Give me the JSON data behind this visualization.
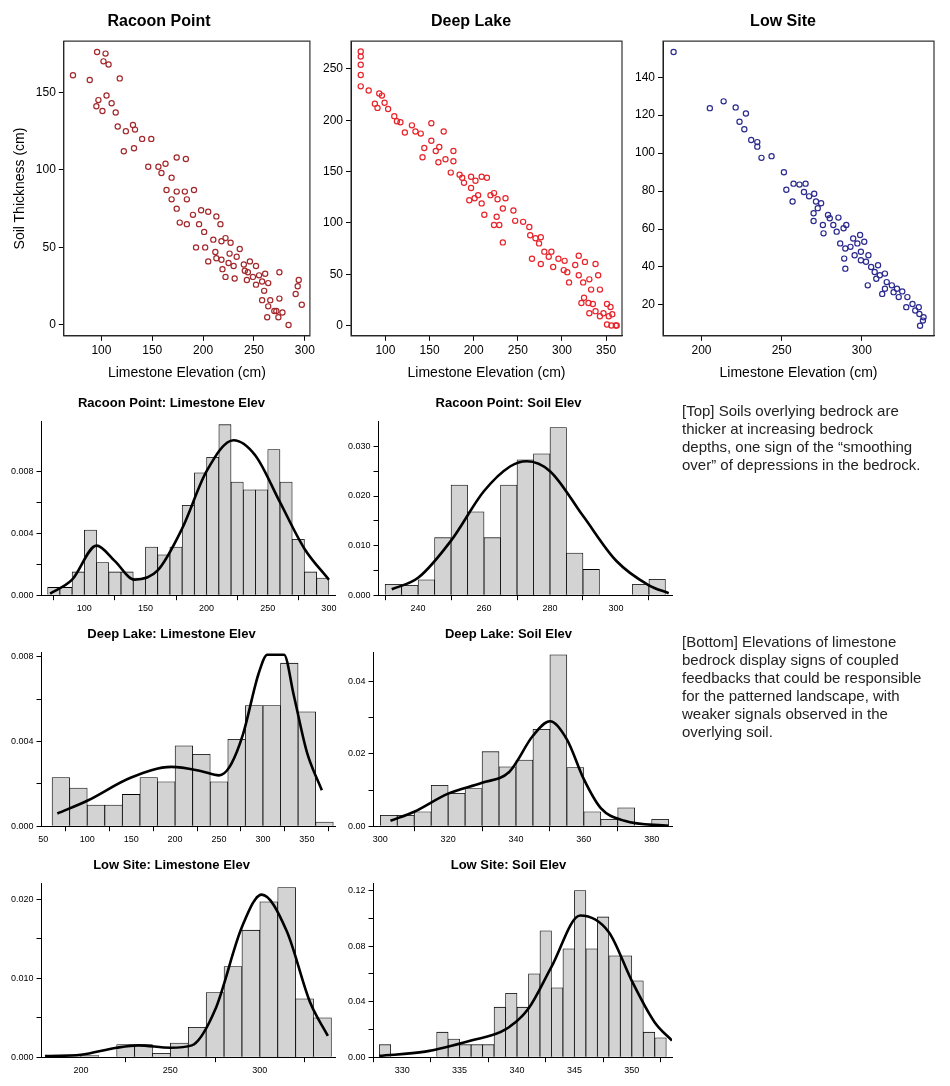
{
  "chart_data": [
    {
      "type": "scatter",
      "title": "Racoon Point",
      "xlabel": "Limestone Elevation (cm)",
      "ylabel": "Soil Thickness (cm)",
      "color": "#a3282b",
      "marker": "circle",
      "xlim": [
        63,
        305
      ],
      "xticks": [
        100,
        150,
        200,
        250,
        300
      ],
      "ylim": [
        -7,
        183
      ],
      "yticks": [
        0,
        50,
        100,
        150
      ],
      "x": [
        72,
        88.5,
        95.7,
        104,
        102,
        107,
        118,
        95,
        97,
        101,
        105,
        110,
        114,
        116,
        124,
        131,
        133,
        122,
        132,
        140,
        149,
        146,
        156,
        163,
        159,
        174,
        183,
        169,
        164,
        169,
        174,
        182,
        191,
        184,
        174,
        177,
        184,
        190,
        198,
        205,
        213,
        217,
        196,
        201,
        193,
        202,
        210,
        218,
        222,
        227,
        226,
        205,
        213,
        218,
        225,
        233,
        236,
        212,
        219,
        222,
        231,
        230,
        240,
        241,
        246,
        244,
        252,
        243,
        249,
        255,
        261,
        252,
        258,
        264,
        260,
        258,
        266,
        264,
        270,
        263,
        274,
        275,
        275,
        272,
        278,
        284,
        294,
        293,
        291,
        297
      ],
      "values": [
        161,
        158,
        176,
        175,
        170,
        168,
        159,
        141,
        145,
        138,
        148,
        143,
        137,
        128,
        125,
        129,
        126,
        112,
        114,
        120,
        120,
        102,
        102,
        104,
        98,
        108,
        107,
        95,
        87,
        81,
        86,
        86,
        87,
        81,
        75,
        66,
        65,
        71,
        74,
        73,
        70,
        65,
        65,
        60,
        50,
        50,
        55,
        54,
        56,
        53,
        46,
        41,
        43,
        42,
        40,
        44,
        49,
        47,
        36,
        31,
        30,
        38,
        39,
        35,
        41,
        34,
        38,
        29,
        31,
        32,
        33,
        26,
        28,
        27,
        22,
        16,
        16,
        12,
        9,
        5,
        5,
        17,
        34,
        9,
        8,
        0,
        29,
        25,
        20,
        13
      ]
    },
    {
      "type": "scatter",
      "title": "Deep Lake",
      "xlabel": "Limestone Elevation (cm)",
      "color": "#e8242a",
      "marker": "circle",
      "xlim": [
        61,
        368
      ],
      "xticks": [
        100,
        150,
        200,
        250,
        300,
        350
      ],
      "ylim": [
        -10,
        277
      ],
      "yticks": [
        0,
        50,
        100,
        150,
        200,
        250
      ],
      "x": [
        72,
        72,
        72,
        72,
        72,
        81,
        93,
        96,
        88,
        91,
        99,
        103,
        110,
        113,
        117,
        122,
        130,
        134,
        140,
        152,
        152,
        144,
        142,
        157,
        161,
        160,
        166,
        168,
        177,
        177,
        174,
        184,
        187,
        189,
        197,
        197,
        202,
        195,
        201,
        205,
        209,
        212,
        209,
        215,
        219,
        223,
        227,
        226,
        223,
        229,
        233,
        236,
        233,
        245,
        247,
        256,
        263,
        264,
        270,
        276,
        274,
        266,
        280,
        276,
        285,
        288,
        290,
        296,
        303,
        302,
        306,
        308,
        315,
        319,
        319,
        326,
        324,
        331,
        333,
        338,
        341,
        343,
        325,
        330,
        322,
        331,
        335,
        338,
        343,
        347,
        351,
        353,
        351,
        361,
        357,
        356,
        362,
        355
      ],
      "values": [
        267,
        262,
        254,
        244,
        233,
        229,
        226,
        224,
        216,
        212,
        217,
        211,
        204,
        199,
        198,
        188,
        195,
        189,
        187,
        197,
        180,
        173,
        164,
        170,
        174,
        159,
        189,
        162,
        170,
        160,
        149,
        147,
        144,
        139,
        145,
        134,
        141,
        122,
        124,
        127,
        119,
        108,
        145,
        144,
        127,
        129,
        123,
        106,
        98,
        98,
        114,
        124,
        81,
        112,
        102,
        101,
        96,
        88,
        85,
        86,
        80,
        65,
        72,
        60,
        67,
        72,
        57,
        65,
        63,
        54,
        52,
        42,
        59,
        49,
        68,
        62,
        42,
        45,
        35,
        60,
        49,
        35,
        27,
        22,
        22,
        12,
        21,
        14,
        9,
        12,
        21,
        9,
        1,
        0,
        11,
        0,
        0,
        18
      ]
    },
    {
      "type": "scatter",
      "title": "Low Site",
      "xlabel": "Limestone Elevation (cm)",
      "color": "#2b2a8f",
      "marker": "circle",
      "xlim": [
        176,
        345
      ],
      "xticks": [
        200,
        250,
        300
      ],
      "ylim": [
        3.7,
        159
      ],
      "yticks": [
        20,
        40,
        60,
        80,
        100,
        120,
        140
      ],
      "x": [
        182.6,
        205.2,
        213.8,
        221.3,
        227.7,
        223.7,
        226.7,
        231,
        234.8,
        234.8,
        237.4,
        243.7,
        251.4,
        252.9,
        256.8,
        257.4,
        261.1,
        264.9,
        263.9,
        270.3,
        267.1,
        271.4,
        274.6,
        269.9,
        269.9,
        272.5,
        275.7,
        276.1,
        280,
        278.9,
        282.2,
        285.4,
        284.3,
        288.6,
        290.3,
        286.5,
        289.7,
        289,
        289.7,
        292.9,
        294.6,
        297.2,
        299.4,
        298.9,
        301.5,
        295.5,
        299.4,
        302.6,
        304.1,
        303.7,
        305.8,
        308,
        310.1,
        311.2,
        309,
        314.4,
        315.5,
        314.4,
        312.7,
        318.7,
        319.8,
        321.9,
        323,
        325.2,
        328.4,
        327.7,
        331.6,
        333.3,
        335.5,
        335.9,
        338.1,
        336.3,
        338.5
      ],
      "values": [
        153.3,
        123.7,
        127.3,
        124.1,
        120.9,
        116.5,
        112.6,
        106.9,
        105.8,
        103.4,
        97.5,
        98.4,
        89.9,
        80.7,
        74.5,
        83.9,
        83.4,
        83.9,
        79.5,
        78.6,
        77.2,
        74.5,
        73.6,
        68.3,
        64.2,
        71,
        62.1,
        57.7,
        65.7,
        67.4,
        62.1,
        66,
        58.6,
        60.4,
        62.1,
        52.4,
        49.7,
        44.4,
        39.1,
        50.6,
        55,
        52.4,
        48,
        56.8,
        53.3,
        46.2,
        43.5,
        42.7,
        46.2,
        30.3,
        40,
        37.3,
        40.9,
        35.6,
        33.8,
        36.5,
        32,
        28.5,
        25.8,
        30.3,
        26.7,
        28.5,
        24.1,
        27.1,
        24.1,
        18.8,
        20.5,
        17,
        18.8,
        15.2,
        11.7,
        9,
        13.5
      ]
    },
    {
      "type": "histogram",
      "title": "Racoon Point: Limestone Elev",
      "xlim": [
        65,
        305
      ],
      "xticks": [
        100,
        150,
        200,
        250,
        300
      ],
      "ylim": [
        0,
        0.0112
      ],
      "yticks": [
        {
          "value": 0,
          "label": "0.000"
        },
        {
          "value": 0.002,
          "label": null
        },
        0.004,
        {
          "value": 0.006,
          "label": null
        },
        0.008
      ],
      "series": [
        {
          "type": "histogram",
          "color": "#d3d3d3",
          "bins": [
            70,
            80,
            90,
            100,
            110,
            120,
            130,
            140,
            150,
            160,
            170,
            180,
            190,
            200,
            210,
            220,
            230,
            240,
            250,
            260,
            270,
            280,
            290,
            300
          ],
          "values": [
            0.0005,
            0.0005,
            0.0015,
            0.0042,
            0.0021,
            0.0015,
            0.0015,
            0.0011,
            0.0031,
            0.0026,
            0.0031,
            0.0058,
            0.0079,
            0.0089,
            0.011,
            0.0073,
            0.0068,
            0.0068,
            0.0094,
            0.0073,
            0.0036,
            0.0015,
            0.0011
          ]
        },
        {
          "type": "line",
          "color": "#000000",
          "x": [
            72,
            90,
            110,
            125,
            141,
            160,
            180,
            200,
            222,
            240,
            260,
            280,
            300
          ],
          "values": [
            0.0001,
            0.001,
            0.0032,
            0.0022,
            0.001,
            0.0016,
            0.0043,
            0.008,
            0.01,
            0.009,
            0.006,
            0.003,
            0.001
          ]
        }
      ]
    },
    {
      "type": "histogram",
      "title": "Racoon Point: Soil Elev",
      "xlim": [
        228,
        317
      ],
      "xticks": [
        240,
        260,
        280,
        300
      ],
      "ylim": [
        0,
        0.035
      ],
      "yticks": [
        {
          "value": 0,
          "label": "0.000"
        },
        {
          "value": 0.005,
          "label": null
        },
        {
          "value": 0.01,
          "label": "0.010"
        },
        {
          "value": 0.015,
          "label": null
        },
        {
          "value": 0.02,
          "label": "0.020"
        },
        {
          "value": 0.025,
          "label": null
        },
        {
          "value": 0.03,
          "label": "0.030"
        }
      ],
      "series": [
        {
          "type": "histogram",
          "color": "#d3d3d3",
          "bins": [
            230,
            235,
            240,
            245,
            250,
            255,
            260,
            265,
            270,
            275,
            280,
            285,
            290,
            295,
            300,
            305,
            310,
            315
          ],
          "values": [
            0.0022,
            0.002,
            0.0031,
            0.0116,
            0.0222,
            0.0168,
            0.0116,
            0.0222,
            0.0273,
            0.0285,
            0.0338,
            0.0085,
            0.0052,
            0,
            0,
            0.0022,
            0.0032
          ]
        },
        {
          "type": "line",
          "color": "#000000",
          "x": [
            232,
            240,
            250,
            260,
            268,
            273,
            280,
            290,
            300,
            310,
            316
          ],
          "values": [
            0.0012,
            0.0035,
            0.011,
            0.021,
            0.026,
            0.027,
            0.025,
            0.016,
            0.007,
            0.002,
            0.0004
          ]
        }
      ]
    },
    {
      "type": "other",
      "annotations": [
        "[Top] Soils overlying bedrock are thicker at increasing bedrock depths, one sign of the “smoothing over” of depressions in the bedrock."
      ]
    },
    {
      "type": "histogram",
      "title": "Deep Lake: Limestone Elev",
      "xlim": [
        48,
        382
      ],
      "xticks": [
        50,
        100,
        150,
        200,
        250,
        300,
        350
      ],
      "ylim": [
        0,
        0.0082
      ],
      "yticks": [
        {
          "value": 0,
          "label": "0.000"
        },
        {
          "value": 0.002,
          "label": null
        },
        0.004,
        {
          "value": 0.006,
          "label": null
        },
        0.008
      ],
      "series": [
        {
          "type": "histogram",
          "color": "#d3d3d3",
          "bins": [
            60,
            80,
            100,
            120,
            140,
            160,
            180,
            200,
            220,
            240,
            260,
            280,
            300,
            320,
            340,
            360,
            380
          ],
          "values": [
            0.0023,
            0.0018,
            0.001,
            0.001,
            0.0015,
            0.0023,
            0.0021,
            0.0038,
            0.0034,
            0.0021,
            0.0041,
            0.0057,
            0.0057,
            0.0077,
            0.0054,
            0.0002
          ]
        },
        {
          "type": "line",
          "color": "#000000",
          "x": [
            66,
            100,
            150,
            196,
            230,
            250,
            262,
            277,
            295,
            305,
            324,
            335,
            350,
            367
          ],
          "values": [
            0.0006,
            0.0012,
            0.0023,
            0.0028,
            0.0026,
            0.0024,
            0.0028,
            0.0043,
            0.0072,
            0.0081,
            0.0081,
            0.0062,
            0.0035,
            0.0017
          ]
        }
      ]
    },
    {
      "type": "histogram",
      "title": "Deep Lake: Soil Elev",
      "xlim": [
        298,
        386
      ],
      "xticks": [
        300,
        320,
        340,
        360,
        380
      ],
      "ylim": [
        0,
        0.048
      ],
      "yticks": [
        {
          "value": 0,
          "label": "0.00"
        },
        {
          "value": 0.01,
          "label": null
        },
        {
          "value": 0.02,
          "label": "0.02"
        },
        {
          "value": 0.03,
          "label": null
        },
        {
          "value": 0.04,
          "label": "0.04"
        }
      ],
      "series": [
        {
          "type": "histogram",
          "color": "#d3d3d3",
          "bins": [
            300,
            305,
            310,
            315,
            320,
            325,
            330,
            335,
            340,
            345,
            350,
            355,
            360,
            365,
            370,
            375,
            380,
            385
          ],
          "values": [
            0.003,
            0.003,
            0.004,
            0.0113,
            0.0091,
            0.0104,
            0.0206,
            0.0164,
            0.0183,
            0.0268,
            0.0474,
            0.0162,
            0.004,
            0.0019,
            0.0051,
            0,
            0.0019
          ]
        },
        {
          "type": "line",
          "color": "#000000",
          "x": [
            303,
            310,
            320,
            330,
            338,
            345,
            350,
            355,
            360,
            365,
            372,
            385
          ],
          "values": [
            0.0015,
            0.004,
            0.009,
            0.012,
            0.015,
            0.025,
            0.029,
            0.024,
            0.013,
            0.005,
            0.0015,
            0.0001
          ]
        }
      ]
    },
    {
      "type": "other",
      "annotations": [
        "[Bottom] Elevations of limestone bedrock display signs of coupled feedbacks that could be responsible for the patterned landscape, with weaker signals observed in the overlying soil."
      ]
    },
    {
      "type": "histogram",
      "title": "Low Site: Limestone Elev",
      "xlim": [
        178,
        342
      ],
      "xticks": [
        200,
        250,
        300
      ],
      "ylim": [
        0,
        0.022
      ],
      "yticks": [
        {
          "value": 0,
          "label": "0.000"
        },
        {
          "value": 0.005,
          "label": null
        },
        {
          "value": 0.01,
          "label": "0.010"
        },
        {
          "value": 0.015,
          "label": null
        },
        {
          "value": 0.02,
          "label": "0.020"
        }
      ],
      "series": [
        {
          "type": "histogram",
          "color": "#d3d3d3",
          "bins": [
            180,
            190,
            200,
            210,
            220,
            230,
            240,
            250,
            260,
            270,
            280,
            290,
            300,
            310,
            320,
            330,
            340
          ],
          "values": [
            0.0003,
            0.0003,
            0.0002,
            null,
            0.0016,
            0.0016,
            0.0005,
            0.0018,
            0.0038,
            0.0082,
            0.0115,
            0.0161,
            0.0197,
            0.0215,
            0.0074,
            0.005
          ]
        },
        {
          "type": "line",
          "color": "#000000",
          "x": [
            180,
            200,
            220,
            232,
            250,
            262,
            275,
            290,
            301,
            315,
            328,
            338
          ],
          "values": [
            0.0001,
            0.0003,
            0.0012,
            0.0015,
            0.0012,
            0.0015,
            0.006,
            0.0165,
            0.0206,
            0.016,
            0.007,
            0.0027
          ]
        }
      ]
    },
    {
      "type": "histogram",
      "title": "Low Site: Soil Elev",
      "xlim": [
        327.5,
        353.5
      ],
      "xticks": [
        330,
        335,
        340,
        345,
        350
      ],
      "ylim": [
        0,
        0.125
      ],
      "yticks": [
        {
          "value": 0,
          "label": "0.00"
        },
        {
          "value": 0.02,
          "label": null
        },
        {
          "value": 0.04,
          "label": "0.04"
        },
        {
          "value": 0.06,
          "label": null
        },
        {
          "value": 0.08,
          "label": "0.08"
        },
        {
          "value": 0.1,
          "label": null
        },
        {
          "value": 0.12,
          "label": "0.12"
        }
      ],
      "series": [
        {
          "type": "histogram",
          "color": "#d3d3d3",
          "bins": [
            328,
            329,
            330,
            331,
            332,
            333,
            334,
            335,
            336,
            337,
            338,
            339,
            340,
            341,
            342,
            343,
            344,
            345,
            346,
            347,
            348,
            349,
            350,
            351,
            352,
            353
          ],
          "values": [
            0.009,
            0,
            null,
            null,
            0,
            0.018,
            0.013,
            0.009,
            0.009,
            0.009,
            0.036,
            0.046,
            0.036,
            0.06,
            0.091,
            0.05,
            0.078,
            0.12,
            0.078,
            0.101,
            0.073,
            0.073,
            0.055,
            0.018,
            0.014
          ]
        },
        {
          "type": "line",
          "color": "#000000",
          "x": [
            328,
            332,
            336,
            339,
            341,
            343,
            345.5,
            348,
            350,
            352,
            353.5
          ],
          "values": [
            0.001,
            0.004,
            0.012,
            0.02,
            0.035,
            0.065,
            0.102,
            0.09,
            0.055,
            0.025,
            0.012
          ]
        }
      ]
    }
  ]
}
